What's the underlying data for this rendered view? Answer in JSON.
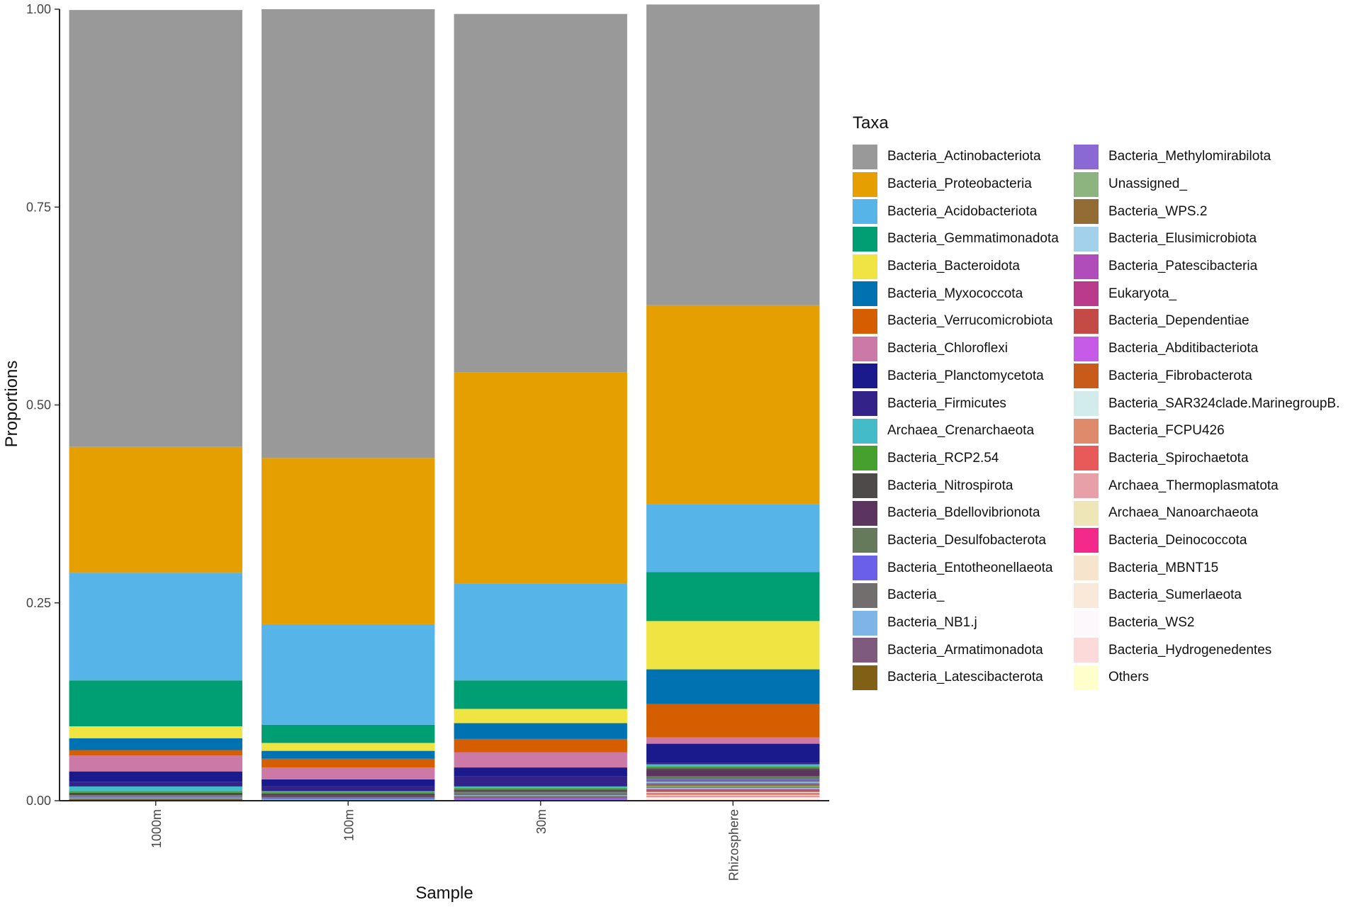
{
  "chart_data": {
    "type": "bar",
    "stacked": true,
    "xlabel": "Sample",
    "ylabel": "Proportions",
    "ylim": [
      0,
      1
    ],
    "yticks": [
      "0.00",
      "0.25",
      "0.50",
      "0.75",
      "1.00"
    ],
    "legend_title": "Taxa",
    "categories": [
      "1000m",
      "100m",
      "30m",
      "Rhizosphere"
    ],
    "series": [
      {
        "name": "Bacteria_Actinobacteriota",
        "color": "#999999",
        "values": [
          0.552,
          0.567,
          0.453,
          0.38
        ]
      },
      {
        "name": "Bacteria_Proteobacteria",
        "color": "#E69F00",
        "values": [
          0.159,
          0.21,
          0.267,
          0.251
        ]
      },
      {
        "name": "Bacteria_Acidobacteriota",
        "color": "#56B4E9",
        "values": [
          0.136,
          0.127,
          0.122,
          0.086
        ]
      },
      {
        "name": "Bacteria_Gemmatimonadota",
        "color": "#009E73",
        "values": [
          0.058,
          0.023,
          0.036,
          0.062
        ]
      },
      {
        "name": "Bacteria_Bacteroidota",
        "color": "#F0E442",
        "values": [
          0.015,
          0.01,
          0.018,
          0.061
        ]
      },
      {
        "name": "Bacteria_Myxococcota",
        "color": "#0072B2",
        "values": [
          0.015,
          0.01,
          0.02,
          0.044
        ]
      },
      {
        "name": "Bacteria_Verrucomicrobiota",
        "color": "#D55E00",
        "values": [
          0.007,
          0.011,
          0.017,
          0.042
        ]
      },
      {
        "name": "Bacteria_Chloroflexi",
        "color": "#CC79A7",
        "values": [
          0.02,
          0.015,
          0.019,
          0.008
        ]
      },
      {
        "name": "Bacteria_Planctomycetota",
        "color": "#1A1A8C",
        "values": [
          0.013,
          0.009,
          0.011,
          0.024
        ]
      },
      {
        "name": "Bacteria_Firmicutes",
        "color": "#332288",
        "values": [
          0.006,
          0.006,
          0.013,
          0.002
        ]
      },
      {
        "name": "Archaea_Crenarchaeota",
        "color": "#44BBC8",
        "values": [
          0.006,
          0.001,
          0.002,
          0.003
        ]
      },
      {
        "name": "Bacteria_RCP2.54",
        "color": "#46A02D",
        "values": [
          0.002,
          0.002,
          0.002,
          0.002
        ]
      },
      {
        "name": "Bacteria_Nitrospirota",
        "color": "#4E4A4A",
        "values": [
          0.002,
          0.002,
          0.002,
          0.002
        ]
      },
      {
        "name": "Bacteria_Bdellovibrionota",
        "color": "#5C3460",
        "values": [
          0.001,
          0.002,
          0.001,
          0.008
        ]
      },
      {
        "name": "Bacteria_Desulfobacterota",
        "color": "#647A5A",
        "values": [
          0.001,
          0.001,
          0.001,
          0.004
        ]
      },
      {
        "name": "Bacteria_Entotheonellaeota",
        "color": "#6A5FE8",
        "values": [
          0.001,
          0.001,
          0.001,
          0.001
        ]
      },
      {
        "name": "Bacteria_",
        "color": "#736E6E",
        "values": [
          0.001,
          0.001,
          0.002,
          0.002
        ]
      },
      {
        "name": "Bacteria_NB1.j",
        "color": "#7DB6E6",
        "values": [
          0.001,
          0.001,
          0.001,
          0.002
        ]
      },
      {
        "name": "Bacteria_Armatimonadota",
        "color": "#7E5A7E",
        "values": [
          0.001,
          0.001,
          0.001,
          0.002
        ]
      },
      {
        "name": "Bacteria_Latescibacterota",
        "color": "#806014",
        "values": [
          0.001,
          0.0,
          0.001,
          0.001
        ]
      },
      {
        "name": "Bacteria_Methylomirabilota",
        "color": "#8A69D4",
        "values": [
          0.001,
          0.0,
          0.003,
          0.001
        ]
      },
      {
        "name": "Unassigned_",
        "color": "#8DB37F",
        "values": [
          0.0,
          0.0,
          0.0,
          0.001
        ]
      },
      {
        "name": "Bacteria_WPS.2",
        "color": "#936C35",
        "values": [
          0.0,
          0.0,
          0.0,
          0.001
        ]
      },
      {
        "name": "Bacteria_Elusimicrobiota",
        "color": "#A3D0EB",
        "values": [
          0.0,
          0.0,
          0.0,
          0.001
        ]
      },
      {
        "name": "Bacteria_Patescibacteria",
        "color": "#B04DBA",
        "values": [
          0.0,
          0.0,
          0.001,
          0.001
        ]
      },
      {
        "name": "Eukaryota_",
        "color": "#BA3A8C",
        "values": [
          0.0,
          0.0,
          0.0,
          0.001
        ]
      },
      {
        "name": "Bacteria_Dependentiae",
        "color": "#C44A45",
        "values": [
          0.0,
          0.0,
          0.0,
          0.001
        ]
      },
      {
        "name": "Bacteria_Abditibacteriota",
        "color": "#C65BE8",
        "values": [
          0.0,
          0.0,
          0.0,
          0.0
        ]
      },
      {
        "name": "Bacteria_Fibrobacterota",
        "color": "#C85A1A",
        "values": [
          0.0,
          0.0,
          0.0,
          0.001
        ]
      },
      {
        "name": "Bacteria_SAR324clade.MarinegroupB.",
        "color": "#D2ECEC",
        "values": [
          0.0,
          0.0,
          0.0,
          0.001
        ]
      },
      {
        "name": "Bacteria_FCPU426",
        "color": "#E08A6C",
        "values": [
          0.0,
          0.0,
          0.0,
          0.001
        ]
      },
      {
        "name": "Bacteria_Spirochaetota",
        "color": "#E85A5A",
        "values": [
          0.0,
          0.0,
          0.0,
          0.001
        ]
      },
      {
        "name": "Archaea_Thermoplasmatota",
        "color": "#E8A0A8",
        "values": [
          0.0,
          0.0,
          0.0,
          0.001
        ]
      },
      {
        "name": "Archaea_Nanoarchaeota",
        "color": "#EEE6B6",
        "values": [
          0.0,
          0.0,
          0.0,
          0.001
        ]
      },
      {
        "name": "Bacteria_Deinococcota",
        "color": "#F42A8A",
        "values": [
          0.0,
          0.0,
          0.0,
          0.001
        ]
      },
      {
        "name": "Bacteria_MBNT15",
        "color": "#F7E4CC",
        "values": [
          0.0,
          0.0,
          0.0,
          0.001
        ]
      },
      {
        "name": "Bacteria_Sumerlaeota",
        "color": "#FAE8D8",
        "values": [
          0.0,
          0.0,
          0.0,
          0.001
        ]
      },
      {
        "name": "Bacteria_WS2",
        "color": "#FCF8FC",
        "values": [
          0.0,
          0.0,
          0.0,
          0.001
        ]
      },
      {
        "name": "Bacteria_Hydrogenedentes",
        "color": "#FDDADA",
        "values": [
          0.0,
          0.0,
          0.0,
          0.001
        ]
      },
      {
        "name": "Others",
        "color": "#FFFFCC",
        "values": [
          0.0,
          0.0,
          0.0,
          0.001
        ]
      }
    ]
  }
}
